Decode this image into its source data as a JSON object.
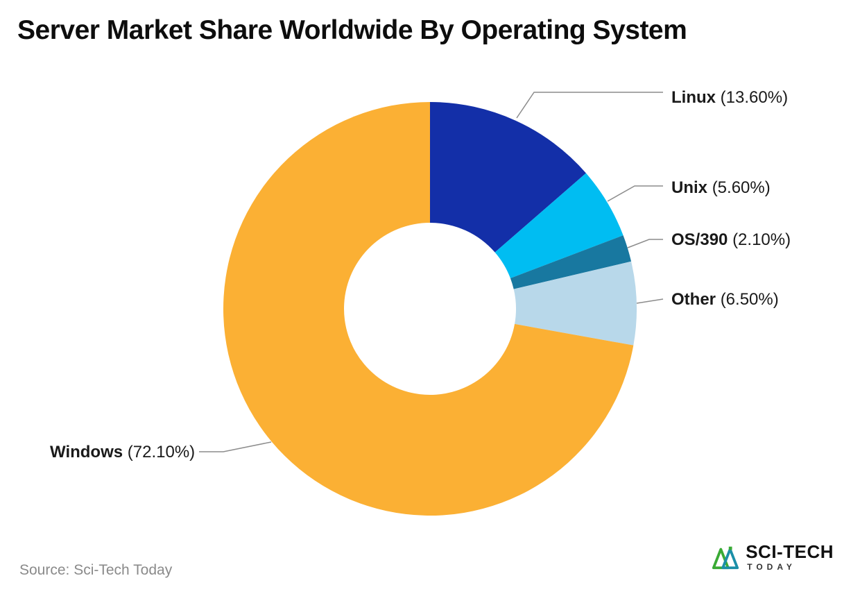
{
  "title": "Server Market Share Worldwide By Operating System",
  "source": "Source: Sci-Tech Today",
  "brand": {
    "top": "SCI-TECH",
    "bottom": "TODAY"
  },
  "chart_data": {
    "type": "pie",
    "donut": true,
    "title": "Server Market Share Worldwide By Operating System",
    "start_angle_deg": 0,
    "direction": "clockwise",
    "unit": "%",
    "slices": [
      {
        "label": "Linux",
        "value": 13.6,
        "pct_text": "(13.60%)",
        "color": "#132fa8"
      },
      {
        "label": "Unix",
        "value": 5.6,
        "pct_text": "(5.60%)",
        "color": "#00bdf2"
      },
      {
        "label": "OS/390",
        "value": 2.1,
        "pct_text": "(2.10%)",
        "color": "#1878a0"
      },
      {
        "label": "Other",
        "value": 6.5,
        "pct_text": "(6.50%)",
        "color": "#b8d8ea"
      },
      {
        "label": "Windows",
        "value": 72.1,
        "pct_text": "(72.10%)",
        "color": "#fbb034"
      }
    ],
    "legend_position": "callout-labels",
    "leader_line_color": "#8c8c8c"
  }
}
